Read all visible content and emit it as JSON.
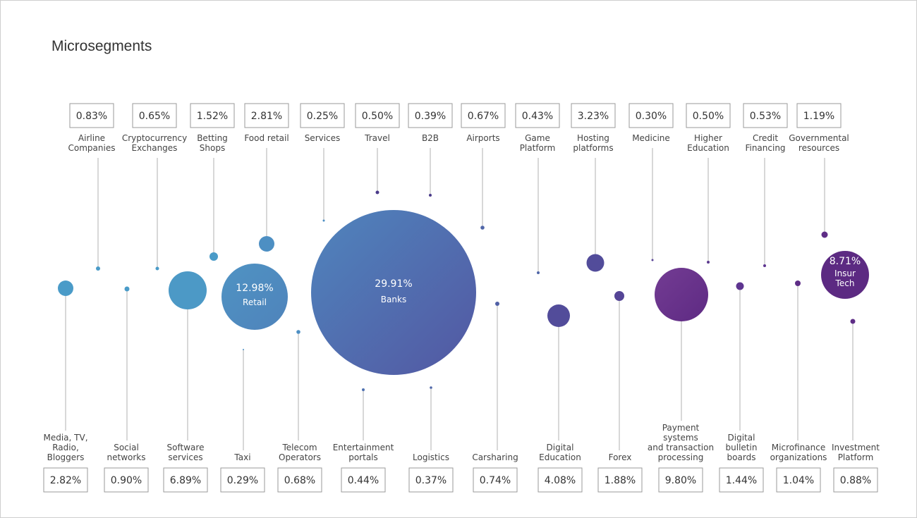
{
  "title": "Microsegments",
  "chart_data": {
    "type": "bubble",
    "title": "Microsegments",
    "unit": "%",
    "top_segments": [
      {
        "name": "Airline Companies",
        "value": "0.83%"
      },
      {
        "name": "Cryptocurrency Exchanges",
        "value": "0.65%"
      },
      {
        "name": "Betting Shops",
        "value": "1.52%"
      },
      {
        "name": "Food retail",
        "value": "2.81%"
      },
      {
        "name": "Services",
        "value": "0.25%"
      },
      {
        "name": "Travel",
        "value": "0.50%"
      },
      {
        "name": "B2B",
        "value": "0.39%"
      },
      {
        "name": "Airports",
        "value": "0.67%"
      },
      {
        "name": "Game Platform",
        "value": "0.43%"
      },
      {
        "name": "Hosting platforms",
        "value": "3.23%"
      },
      {
        "name": "Medicine",
        "value": "0.30%"
      },
      {
        "name": "Higher Education",
        "value": "0.50%"
      },
      {
        "name": "Credit Financing",
        "value": "0.53%"
      },
      {
        "name": "Governmental resources",
        "value": "1.19%"
      }
    ],
    "bottom_segments": [
      {
        "name": "Media, TV, Radio, Bloggers",
        "value": "2.82%"
      },
      {
        "name": "Social networks",
        "value": "0.90%"
      },
      {
        "name": "Software services",
        "value": "6.89%"
      },
      {
        "name": "Taxi",
        "value": "0.29%"
      },
      {
        "name": "Telecom Operators",
        "value": "0.68%"
      },
      {
        "name": "Entertainment portals",
        "value": "0.44%"
      },
      {
        "name": "Logistics",
        "value": "0.37%"
      },
      {
        "name": "Carsharing",
        "value": "0.74%"
      },
      {
        "name": "Digital Education",
        "value": "4.08%"
      },
      {
        "name": "Forex",
        "value": "1.88%"
      },
      {
        "name": "Payment systems and transaction processing",
        "value": "9.80%"
      },
      {
        "name": "Digital bulletin boards",
        "value": "1.44%"
      },
      {
        "name": "Microfinance organizations",
        "value": "1.04%"
      },
      {
        "name": "Investment Platform",
        "value": "0.88%"
      }
    ],
    "inner_segments": [
      {
        "name": "Retail",
        "value": "12.98%"
      },
      {
        "name": "Banks",
        "value": "29.91%"
      },
      {
        "name": "Insur Tech",
        "value": "8.71%"
      }
    ]
  }
}
